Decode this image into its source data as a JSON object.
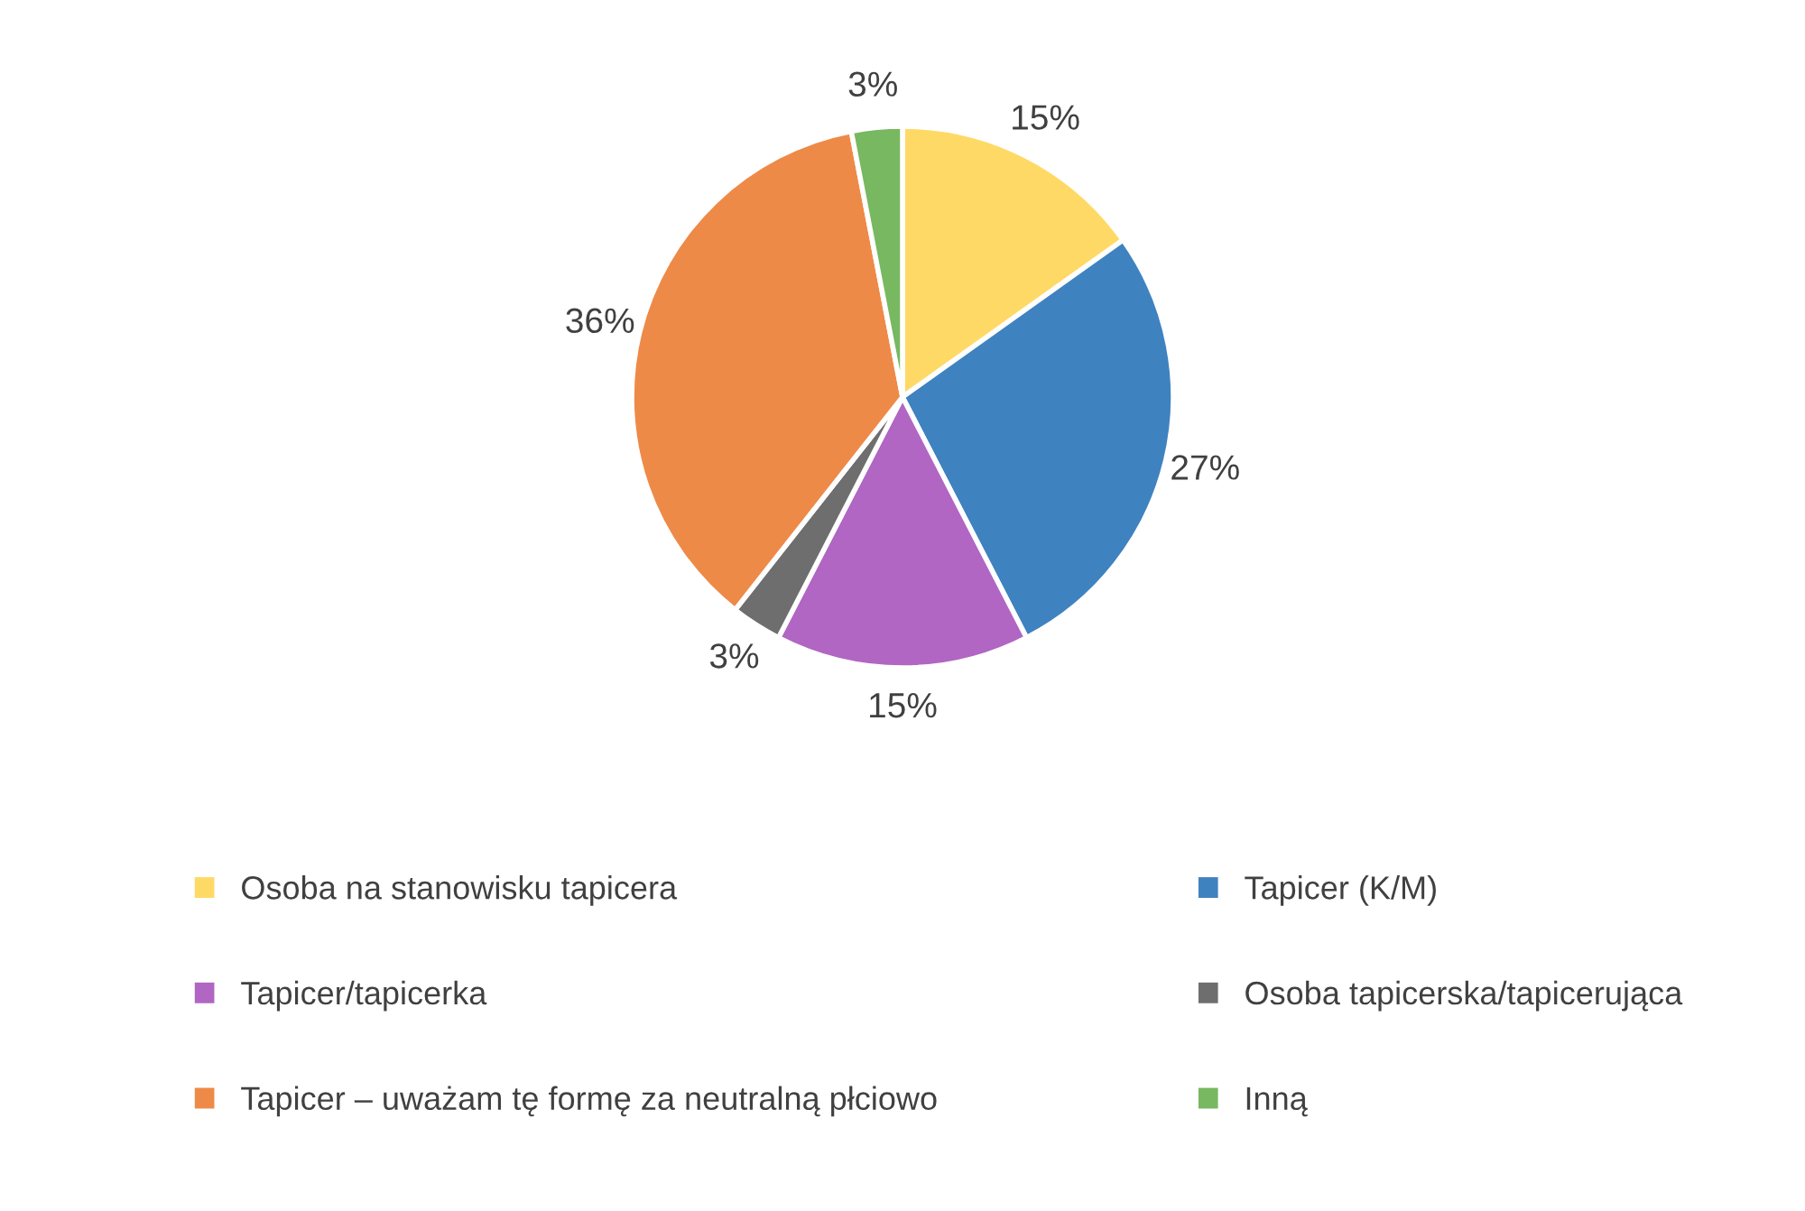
{
  "chart_data": {
    "type": "pie",
    "categories": [
      "Osoba na stanowisku tapicera",
      "Tapicer (K/M)",
      "Tapicer/tapicerka",
      "Osoba tapicerska/tapicerująca",
      "Tapicer – uważam tę formę za neutralną płciowo",
      "Inną"
    ],
    "values": [
      15,
      27,
      15,
      3,
      36,
      3
    ],
    "value_labels": [
      "15%",
      "27%",
      "15%",
      "3%",
      "36%",
      "3%"
    ],
    "colors": [
      "#ffd966",
      "#3f82c0",
      "#b066c2",
      "#6e6e6e",
      "#ee8a47",
      "#78b860"
    ],
    "legend": "bottom"
  }
}
